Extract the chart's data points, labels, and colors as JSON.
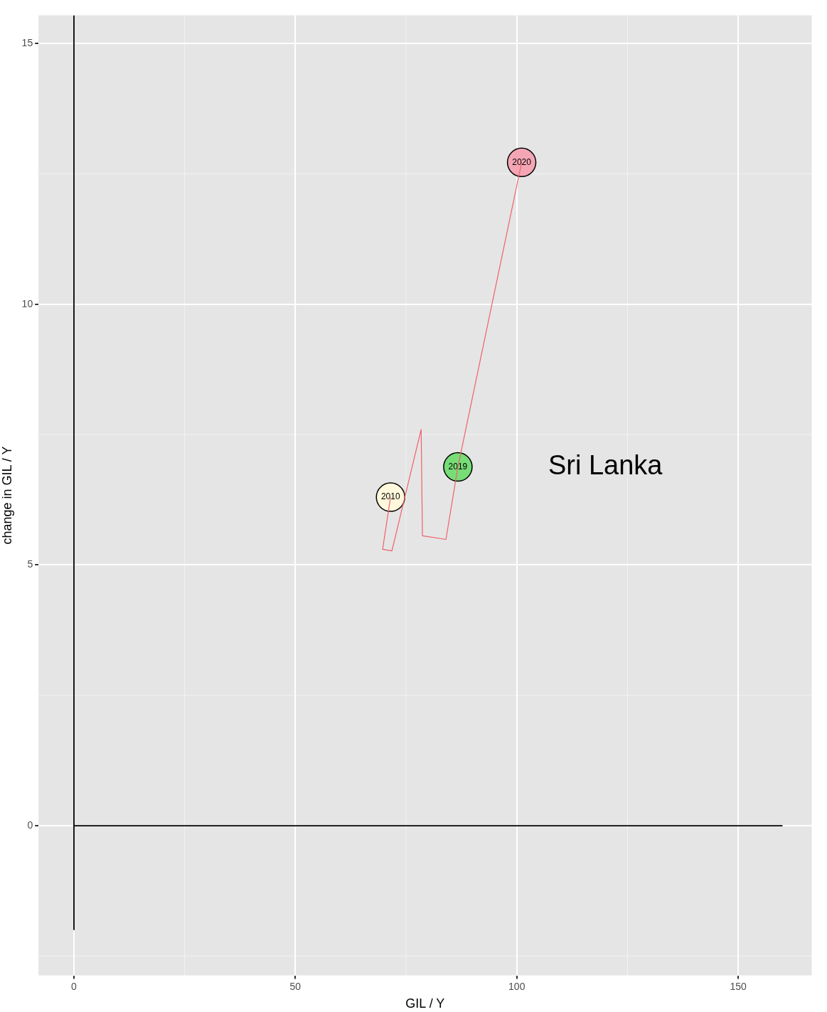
{
  "chart_data": {
    "type": "line",
    "xlabel": "GIL / Y",
    "ylabel": "change in GIL / Y",
    "xlim": [
      -8,
      166.6
    ],
    "ylim": [
      -2.87,
      15.54
    ],
    "xticks": [
      0,
      50,
      100,
      150
    ],
    "yticks": [
      0,
      5,
      10,
      15
    ],
    "grid": true,
    "legend": false,
    "series": [
      {
        "type": "line",
        "color": "#000000",
        "x": [
          0,
          0
        ],
        "values": [
          -2,
          15.54
        ],
        "marker": "none"
      },
      {
        "type": "line",
        "color": "#000000",
        "x": [
          0,
          160
        ],
        "values": [
          0,
          0
        ],
        "marker": "none"
      },
      {
        "color": "#f0606a",
        "x": [
          71.5,
          69.7,
          71.8,
          78.4,
          78.7,
          84.0,
          86.7,
          101.1
        ],
        "values": [
          6.3,
          5.3,
          5.27,
          7.6,
          5.56,
          5.49,
          6.88,
          12.72
        ],
        "marker": "none"
      },
      {
        "type": "scatter",
        "x": [
          71.5,
          86.7,
          101.1
        ],
        "values": [
          6.3,
          6.88,
          12.72
        ],
        "colors": [
          "#fff8dc",
          "#77dd77",
          "#f4a6b4"
        ],
        "marker": "circle"
      }
    ],
    "annotations": [
      {
        "text": "2010",
        "x": 71.5,
        "y": 6.3
      },
      {
        "text": "2019",
        "x": 86.7,
        "y": 6.88
      },
      {
        "text": "2020",
        "x": 101.1,
        "y": 12.72
      },
      "Sri Lanka"
    ]
  }
}
